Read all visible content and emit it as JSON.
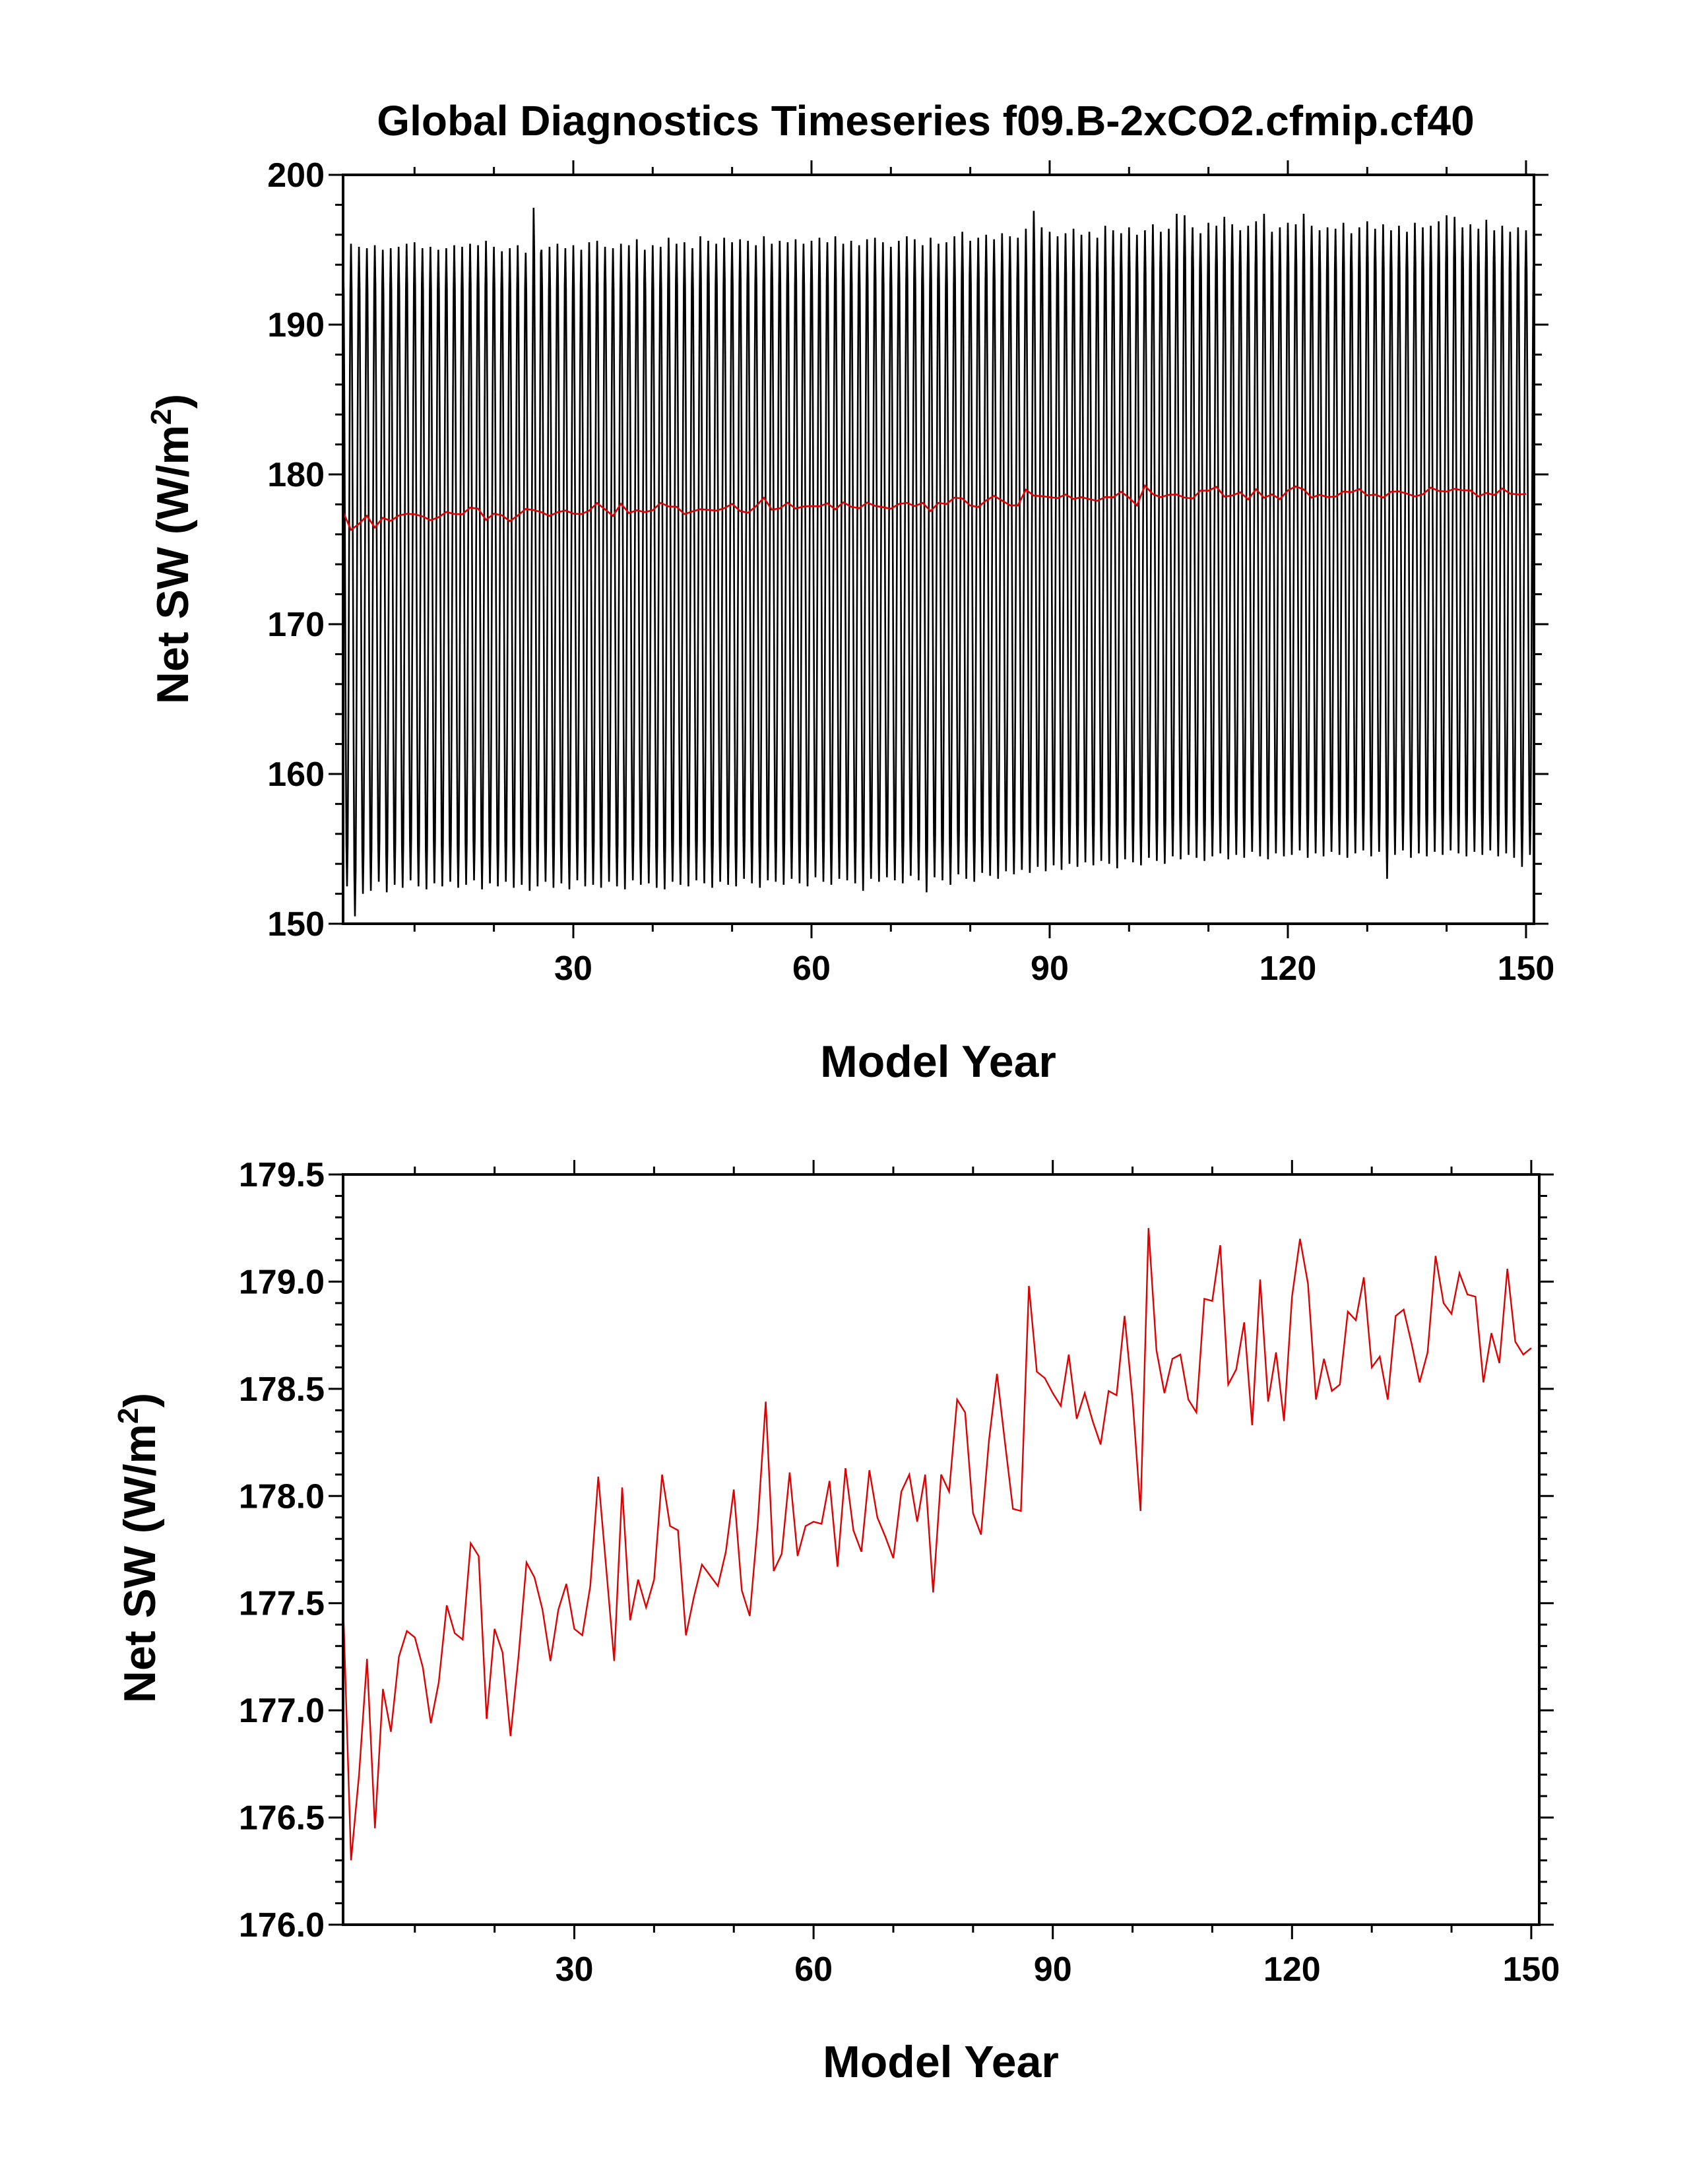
{
  "title": "Global Diagnostics Timeseries f09.B-2xCO2.cfmip.cf40",
  "chart_data": [
    {
      "type": "line",
      "xlabel": "Model Year",
      "ylabel": "Net SW (W/m²)",
      "ylabel_main": "Net SW (W/m",
      "ylabel_sup": "2",
      "ylabel_close": ")",
      "xlim": [
        1,
        151
      ],
      "ylim": [
        150,
        200
      ],
      "xticks": [
        30,
        60,
        90,
        120,
        150
      ],
      "yticks": [
        150,
        160,
        170,
        180,
        190,
        200
      ],
      "ytick_labels": [
        "150",
        "160",
        "170",
        "180",
        "190",
        "200"
      ],
      "series": [
        {
          "kind": "monthly",
          "color": "#000000",
          "x": [
            1,
            151
          ],
          "seasonal_max": [
            195,
            195.4,
            195.2,
            195.1,
            195.3,
            195.0,
            195.1,
            195.2,
            195.4,
            195.5,
            195.1,
            195.2,
            195.0,
            195.1,
            195.3,
            195.2,
            195.4,
            195.3,
            195.6,
            195.2,
            194.9,
            195.1,
            195.3,
            194.8,
            197.8,
            195.0,
            195.2,
            195.4,
            195.1,
            195.3,
            195.0,
            195.5,
            195.6,
            195.2,
            195.1,
            195.4,
            195.3,
            195.7,
            195.0,
            195.3,
            195.2,
            195.8,
            195.4,
            195.5,
            195.1,
            195.9,
            195.6,
            195.4,
            195.8,
            195.5,
            195.7,
            195.6,
            195.3,
            195.9,
            195.4,
            195.6,
            195.5,
            195.7,
            195.4,
            195.6,
            195.8,
            195.5,
            195.9,
            195.4,
            195.6,
            195.3,
            195.7,
            195.8,
            195.5,
            195.2,
            195.6,
            195.9,
            195.7,
            195.3,
            195.8,
            195.4,
            195.5,
            195.9,
            196.2,
            195.6,
            195.8,
            196.0,
            195.7,
            196.1,
            195.9,
            195.8,
            196.4,
            197.6,
            196.5,
            196.2,
            195.9,
            196.1,
            196.4,
            196.0,
            196.2,
            195.8,
            196.6,
            196.3,
            196.1,
            196.5,
            196.0,
            196.3,
            196.7,
            196.2,
            196.4,
            197.4,
            197.3,
            196.5,
            196.1,
            196.8,
            196.6,
            197.2,
            196.7,
            196.3,
            196.6,
            196.9,
            197.4,
            196.2,
            196.5,
            196.8,
            196.7,
            197.4,
            196.6,
            196.3,
            196.5,
            196.4,
            196.8,
            196.1,
            196.5,
            196.9,
            196.4,
            196.7,
            196.3,
            196.6,
            196.2,
            196.8,
            196.5,
            196.6,
            196.9,
            197.3,
            197.2,
            196.5,
            196.7,
            196.4,
            197.0,
            196.3,
            196.6,
            196.2,
            196.5,
            196.3,
            195.0
          ],
          "seasonal_min": [
            152.5,
            150.5,
            152.0,
            152.2,
            152.8,
            152.1,
            152.6,
            152.4,
            152.9,
            152.5,
            152.3,
            152.7,
            152.5,
            152.8,
            152.4,
            152.6,
            152.9,
            152.3,
            152.7,
            152.5,
            152.8,
            152.4,
            152.6,
            152.2,
            152.5,
            152.8,
            152.4,
            152.7,
            152.3,
            152.9,
            152.5,
            152.6,
            152.4,
            152.8,
            152.5,
            152.3,
            152.9,
            152.6,
            152.7,
            152.4,
            152.3,
            152.8,
            152.6,
            152.5,
            152.9,
            152.7,
            152.4,
            152.8,
            152.6,
            152.5,
            153.0,
            152.7,
            152.4,
            152.9,
            152.8,
            152.6,
            153.0,
            152.7,
            152.5,
            153.1,
            152.8,
            152.6,
            153.0,
            152.9,
            152.7,
            152.2,
            153.0,
            152.8,
            153.1,
            152.9,
            152.7,
            153.2,
            152.9,
            152.1,
            153.1,
            152.9,
            152.6,
            153.3,
            153.0,
            152.8,
            153.4,
            153.2,
            153.0,
            153.5,
            153.3,
            153.6,
            153.4,
            153.8,
            153.5,
            153.9,
            153.6,
            154.0,
            153.8,
            154.1,
            153.9,
            154.2,
            154.0,
            153.7,
            154.3,
            154.1,
            153.9,
            154.4,
            154.2,
            154.0,
            154.5,
            154.3,
            154.6,
            154.4,
            154.2,
            154.5,
            154.7,
            154.3,
            154.6,
            154.4,
            154.8,
            154.5,
            154.3,
            154.7,
            154.5,
            154.6,
            154.9,
            154.4,
            154.7,
            154.5,
            154.8,
            154.6,
            154.4,
            154.7,
            154.9,
            154.5,
            154.8,
            153.0,
            154.6,
            154.9,
            154.4,
            154.7,
            154.5,
            154.8,
            154.6,
            154.9,
            154.7,
            154.5,
            154.8,
            154.6,
            154.9,
            154.5,
            154.7,
            154.4,
            153.8,
            154.6,
            155.0
          ]
        },
        {
          "kind": "annual",
          "color": "#e00000",
          "x_start": 1,
          "values": [
            177.5,
            176.3,
            176.7,
            177.24,
            176.45,
            177.1,
            176.9,
            177.25,
            177.37,
            177.34,
            177.2,
            176.94,
            177.13,
            177.49,
            177.36,
            177.33,
            177.78,
            177.72,
            176.96,
            177.38,
            177.27,
            176.88,
            177.25,
            177.69,
            177.62,
            177.47,
            177.23,
            177.47,
            177.59,
            177.38,
            177.35,
            177.58,
            178.09,
            177.66,
            177.23,
            178.04,
            177.42,
            177.61,
            177.48,
            177.61,
            178.1,
            177.86,
            177.84,
            177.35,
            177.53,
            177.68,
            177.63,
            177.58,
            177.74,
            178.03,
            177.56,
            177.44,
            177.87,
            178.44,
            177.65,
            177.73,
            178.11,
            177.72,
            177.86,
            177.88,
            177.87,
            178.07,
            177.67,
            178.13,
            177.84,
            177.74,
            178.12,
            177.9,
            177.81,
            177.71,
            178.02,
            178.1,
            177.88,
            178.1,
            177.55,
            178.1,
            178.02,
            178.45,
            178.39,
            177.92,
            177.82,
            178.26,
            178.57,
            178.25,
            177.94,
            177.93,
            178.98,
            178.58,
            178.55,
            178.48,
            178.42,
            178.66,
            178.36,
            178.48,
            178.35,
            178.24,
            178.49,
            178.47,
            178.84,
            178.45,
            177.93,
            179.25,
            178.68,
            178.48,
            178.64,
            178.66,
            178.45,
            178.39,
            178.92,
            178.91,
            179.17,
            178.52,
            178.59,
            178.81,
            178.33,
            179.01,
            178.44,
            178.67,
            178.35,
            178.93,
            179.2,
            178.99,
            178.45,
            178.64,
            178.49,
            178.52,
            178.86,
            178.82,
            179.02,
            178.6,
            178.65,
            178.45,
            178.84,
            178.87,
            178.71,
            178.53,
            178.67,
            179.12,
            178.9,
            178.85,
            179.04,
            178.94,
            178.93,
            178.53,
            178.76,
            178.62,
            179.06,
            178.72,
            178.66,
            178.69
          ]
        }
      ]
    },
    {
      "type": "line",
      "xlabel": "Model Year",
      "ylabel": "Net SW (W/m²)",
      "ylabel_main": "Net SW (W/m",
      "ylabel_sup": "2",
      "ylabel_close": ")",
      "xlim": [
        1,
        151
      ],
      "ylim": [
        176.0,
        179.5
      ],
      "xticks": [
        30,
        60,
        90,
        120,
        150
      ],
      "yticks": [
        176.0,
        176.5,
        177.0,
        177.5,
        178.0,
        178.5,
        179.0,
        179.5
      ],
      "ytick_labels": [
        "176.0",
        "176.5",
        "177.0",
        "177.5",
        "178.0",
        "178.5",
        "179.0",
        "179.5"
      ],
      "series": [
        {
          "kind": "annual",
          "color": "#e00000",
          "x_start": 1,
          "values": [
            177.5,
            176.3,
            176.7,
            177.24,
            176.45,
            177.1,
            176.9,
            177.25,
            177.37,
            177.34,
            177.2,
            176.94,
            177.13,
            177.49,
            177.36,
            177.33,
            177.78,
            177.72,
            176.96,
            177.38,
            177.27,
            176.88,
            177.25,
            177.69,
            177.62,
            177.47,
            177.23,
            177.47,
            177.59,
            177.38,
            177.35,
            177.58,
            178.09,
            177.66,
            177.23,
            178.04,
            177.42,
            177.61,
            177.48,
            177.61,
            178.1,
            177.86,
            177.84,
            177.35,
            177.53,
            177.68,
            177.63,
            177.58,
            177.74,
            178.03,
            177.56,
            177.44,
            177.87,
            178.44,
            177.65,
            177.73,
            178.11,
            177.72,
            177.86,
            177.88,
            177.87,
            178.07,
            177.67,
            178.13,
            177.84,
            177.74,
            178.12,
            177.9,
            177.81,
            177.71,
            178.02,
            178.1,
            177.88,
            178.1,
            177.55,
            178.1,
            178.02,
            178.45,
            178.39,
            177.92,
            177.82,
            178.26,
            178.57,
            178.25,
            177.94,
            177.93,
            178.98,
            178.58,
            178.55,
            178.48,
            178.42,
            178.66,
            178.36,
            178.48,
            178.35,
            178.24,
            178.49,
            178.47,
            178.84,
            178.45,
            177.93,
            179.25,
            178.68,
            178.48,
            178.64,
            178.66,
            178.45,
            178.39,
            178.92,
            178.91,
            179.17,
            178.52,
            178.59,
            178.81,
            178.33,
            179.01,
            178.44,
            178.67,
            178.35,
            178.93,
            179.2,
            178.99,
            178.45,
            178.64,
            178.49,
            178.52,
            178.86,
            178.82,
            179.02,
            178.6,
            178.65,
            178.45,
            178.84,
            178.87,
            178.71,
            178.53,
            178.67,
            179.12,
            178.9,
            178.85,
            179.04,
            178.94,
            178.93,
            178.53,
            178.76,
            178.62,
            179.06,
            178.72,
            178.66,
            178.69
          ]
        }
      ]
    }
  ]
}
